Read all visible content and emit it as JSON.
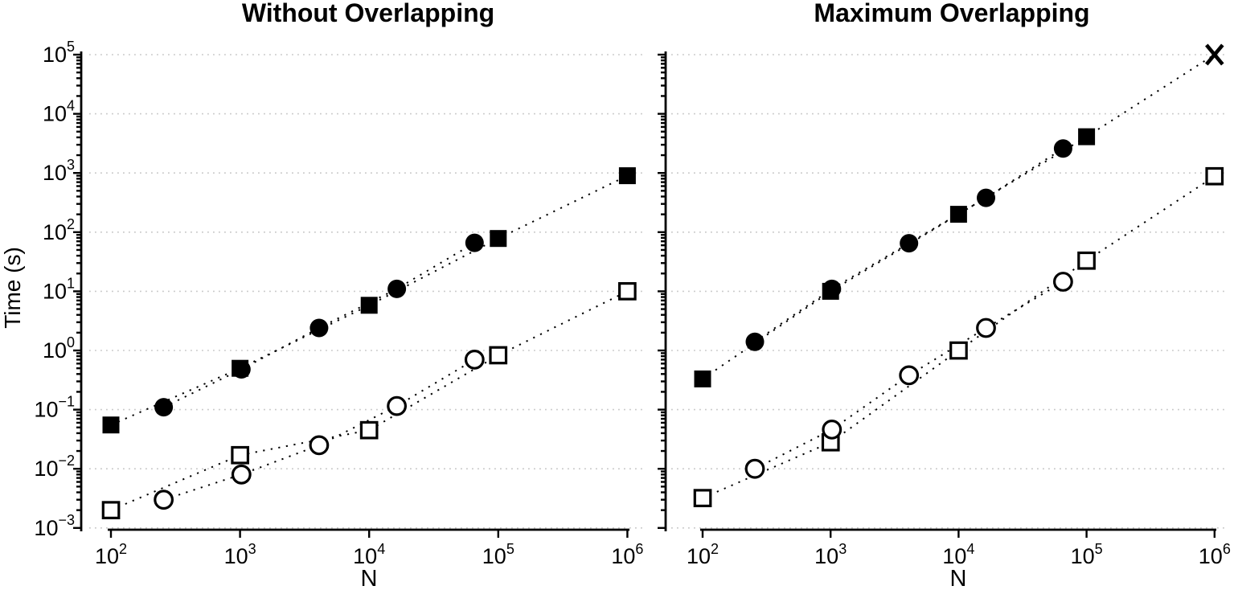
{
  "page": {
    "background": "#ffffff"
  },
  "colors": {
    "foreground": "#000000",
    "gridline": "#c7c7c7"
  },
  "chart_data": [
    {
      "type": "scatter",
      "title": "Without Overlapping",
      "xlabel": "N",
      "ylabel": "Time (s)",
      "xscale": "log",
      "yscale": "log",
      "xlim": [
        100,
        1000000
      ],
      "ylim": [
        0.001,
        100000
      ],
      "x_tick_exponents": [
        2,
        3,
        4,
        5,
        6
      ],
      "y_tick_exponents": [
        5,
        4,
        3,
        2,
        1,
        0,
        -1,
        -2,
        -3
      ],
      "grid": "horizontal dotted gridline at each decade",
      "legend": "none",
      "series": [
        {
          "name": "filled-squares",
          "marker": "square",
          "style": "filled",
          "line": "dotted",
          "points": [
            [
              100,
              0.055
            ],
            [
              1000,
              0.5
            ],
            [
              10000,
              5.8
            ],
            [
              100000,
              78
            ],
            [
              1000000,
              900
            ]
          ]
        },
        {
          "name": "filled-circles",
          "marker": "circle",
          "style": "filled",
          "line": "dotted",
          "points": [
            [
              256,
              0.11
            ],
            [
              1024,
              0.48
            ],
            [
              4096,
              2.4
            ],
            [
              16384,
              11
            ],
            [
              65536,
              66
            ]
          ]
        },
        {
          "name": "open-squares",
          "marker": "square",
          "style": "open",
          "line": "dotted",
          "points": [
            [
              100,
              0.002
            ],
            [
              1000,
              0.017
            ],
            [
              10000,
              0.045
            ],
            [
              100000,
              0.83
            ],
            [
              1000000,
              10
            ]
          ]
        },
        {
          "name": "open-circles",
          "marker": "circle",
          "style": "open",
          "line": "dotted",
          "points": [
            [
              256,
              0.003
            ],
            [
              1024,
              0.008
            ],
            [
              4096,
              0.025
            ],
            [
              16384,
              0.115
            ],
            [
              65536,
              0.7
            ]
          ]
        }
      ]
    },
    {
      "type": "scatter",
      "title": "Maximum Overlapping",
      "xlabel": "N",
      "ylabel": "",
      "xscale": "log",
      "yscale": "log",
      "xlim": [
        100,
        1000000
      ],
      "ylim": [
        0.001,
        100000
      ],
      "x_tick_exponents": [
        2,
        3,
        4,
        5,
        6
      ],
      "y_tick_exponents": [
        5,
        4,
        3,
        2,
        1,
        0,
        -1,
        -2,
        -3
      ],
      "grid": "horizontal dotted gridline at each decade",
      "legend": "none",
      "series": [
        {
          "name": "filled-squares",
          "marker": "square",
          "style": "filled",
          "line": "dotted",
          "points": [
            [
              100,
              0.33
            ],
            [
              1000,
              10
            ],
            [
              10000,
              200
            ],
            [
              100000,
              4100
            ],
            [
              1000000,
              100000
            ]
          ],
          "point_markers": [
            "square",
            "square",
            "square",
            "square",
            "x"
          ]
        },
        {
          "name": "filled-circles",
          "marker": "circle",
          "style": "filled",
          "line": "dotted",
          "points": [
            [
              256,
              1.4
            ],
            [
              1024,
              11
            ],
            [
              4096,
              65
            ],
            [
              16384,
              380
            ],
            [
              65536,
              2600
            ]
          ]
        },
        {
          "name": "open-squares",
          "marker": "square",
          "style": "open",
          "line": "dotted",
          "points": [
            [
              100,
              0.0032
            ],
            [
              1000,
              0.028
            ],
            [
              10000,
              1.0
            ],
            [
              100000,
              33
            ],
            [
              1000000,
              880
            ]
          ]
        },
        {
          "name": "open-circles",
          "marker": "circle",
          "style": "open",
          "line": "dotted",
          "points": [
            [
              256,
              0.01
            ],
            [
              1024,
              0.046
            ],
            [
              4096,
              0.38
            ],
            [
              16384,
              2.4
            ],
            [
              65536,
              14.5
            ]
          ]
        }
      ]
    }
  ]
}
